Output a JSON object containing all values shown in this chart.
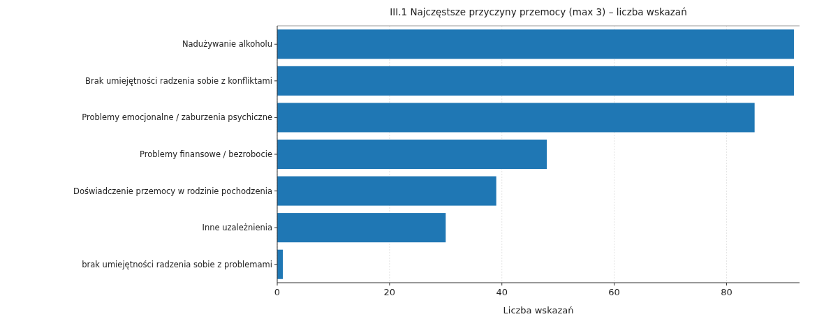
{
  "chart_data": {
    "type": "bar",
    "orientation": "horizontal",
    "title": "III.1 Najczęstsze przyczyny przemocy (max 3) – liczba wskazań",
    "xlabel": "Liczba wskazań",
    "categories": [
      "Nadużywanie alkoholu",
      "Brak umiejętności radzenia sobie z konfliktami",
      "Problemy emocjonalne / zaburzenia psychiczne",
      "Problemy finansowe / bezrobocie",
      "Doświadczenie przemocy w rodzinie pochodzenia",
      "Inne uzależnienia",
      "brak umiejętności radzenia sobie z problemami"
    ],
    "values": [
      92,
      92,
      85,
      48,
      39,
      30,
      1
    ],
    "color": "#1f77b4",
    "xlim": [
      0,
      93
    ],
    "xticks": [
      0,
      20,
      40,
      60,
      80
    ],
    "grid": "x"
  }
}
